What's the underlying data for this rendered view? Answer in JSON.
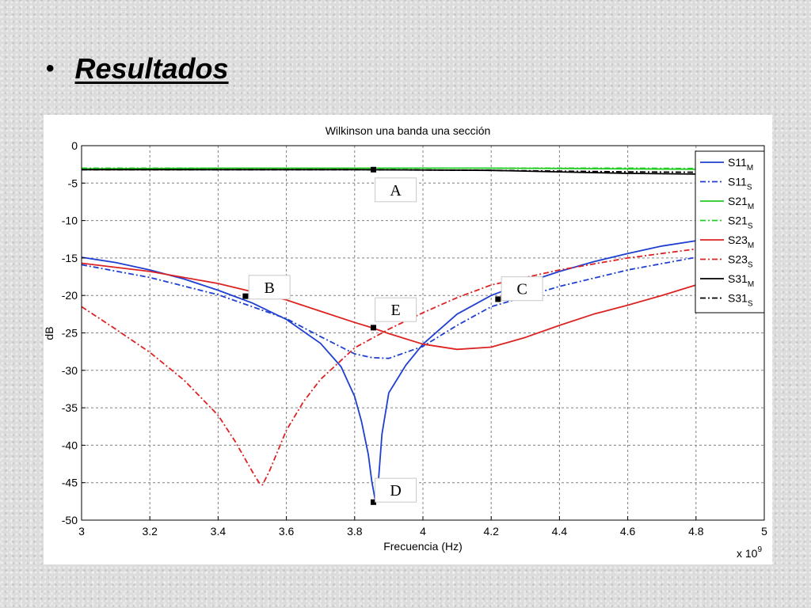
{
  "slide": {
    "bullet": "•",
    "heading": "Resultados"
  },
  "colors": {
    "blue": "#1f3fd0",
    "green": "#22cc22",
    "red": "#dd2222",
    "black": "#000000",
    "grid": "#808080"
  },
  "chart_data": {
    "type": "line",
    "title": "Wilkinson una banda una sección",
    "xlabel": "Frecuencia (Hz)",
    "ylabel": "dB",
    "x_multiplier_label": "x 10",
    "x_multiplier_exp": "9",
    "xlim": [
      3,
      5
    ],
    "ylim": [
      -50,
      0
    ],
    "grid": true,
    "legend_position": "right",
    "x_ticks": [
      "3",
      "3.2",
      "3.4",
      "3.6",
      "3.8",
      "4",
      "4.2",
      "4.4",
      "4.6",
      "4.8",
      "5"
    ],
    "y_ticks": [
      "0",
      "-5",
      "-10",
      "-15",
      "-20",
      "-25",
      "-30",
      "-35",
      "-40",
      "-45",
      "-50"
    ],
    "series": [
      {
        "name": "S11",
        "sub": "M",
        "color": "blue",
        "style": "solid",
        "x": [
          3.0,
          3.1,
          3.2,
          3.3,
          3.4,
          3.5,
          3.6,
          3.7,
          3.76,
          3.8,
          3.82,
          3.84,
          3.85,
          3.86,
          3.87,
          3.88,
          3.9,
          3.95,
          4.0,
          4.1,
          4.2,
          4.3,
          4.4,
          4.5,
          4.6,
          4.7,
          4.8,
          4.9,
          5.0
        ],
        "y": [
          -14.9,
          -15.6,
          -16.6,
          -17.8,
          -19.3,
          -21.0,
          -23.2,
          -26.4,
          -29.5,
          -33.5,
          -36.8,
          -41.2,
          -44.8,
          -47.3,
          -44.5,
          -38.5,
          -33.0,
          -29.3,
          -26.5,
          -22.5,
          -20.0,
          -18.3,
          -16.8,
          -15.5,
          -14.4,
          -13.4,
          -12.7,
          -12.3,
          -12.2
        ]
      },
      {
        "name": "S11",
        "sub": "S",
        "color": "blue",
        "style": "dashdot",
        "x": [
          3.0,
          3.2,
          3.4,
          3.6,
          3.7,
          3.8,
          3.85,
          3.9,
          4.0,
          4.1,
          4.2,
          4.4,
          4.6,
          4.8,
          5.0
        ],
        "y": [
          -15.9,
          -17.6,
          -19.9,
          -23.1,
          -25.5,
          -27.8,
          -28.3,
          -28.4,
          -26.8,
          -24.0,
          -21.5,
          -18.8,
          -16.6,
          -14.9,
          -13.9
        ]
      },
      {
        "name": "S21",
        "sub": "M",
        "color": "green",
        "style": "solid",
        "x": [
          3.0,
          3.4,
          3.8,
          4.2,
          4.6,
          5.0
        ],
        "y": [
          -3.1,
          -3.0,
          -3.0,
          -3.0,
          -3.1,
          -3.2
        ]
      },
      {
        "name": "S21",
        "sub": "S",
        "color": "green",
        "style": "dashdot",
        "x": [
          3.0,
          3.4,
          3.8,
          4.2,
          4.6,
          5.0
        ],
        "y": [
          -3.0,
          -3.0,
          -3.0,
          -3.0,
          -3.0,
          -3.1
        ]
      },
      {
        "name": "S23",
        "sub": "M",
        "color": "red",
        "style": "solid",
        "x": [
          3.0,
          3.2,
          3.4,
          3.6,
          3.7,
          3.8,
          3.85,
          3.9,
          4.0,
          4.1,
          4.2,
          4.3,
          4.4,
          4.5,
          4.6,
          4.7,
          4.8,
          4.9,
          5.0
        ],
        "y": [
          -15.7,
          -16.8,
          -18.4,
          -20.6,
          -22.1,
          -23.6,
          -24.3,
          -25.1,
          -26.5,
          -27.2,
          -26.9,
          -25.6,
          -24.0,
          -22.5,
          -21.3,
          -20.0,
          -18.6,
          -17.5,
          -17.0
        ]
      },
      {
        "name": "S23",
        "sub": "S",
        "color": "red",
        "style": "dashdot",
        "x": [
          3.0,
          3.1,
          3.2,
          3.3,
          3.4,
          3.45,
          3.5,
          3.52,
          3.53,
          3.55,
          3.6,
          3.65,
          3.7,
          3.8,
          3.9,
          4.0,
          4.1,
          4.2,
          4.4,
          4.6,
          4.8,
          5.0
        ],
        "y": [
          -21.5,
          -24.5,
          -27.6,
          -31.3,
          -36.0,
          -39.5,
          -43.5,
          -45.0,
          -45.3,
          -43.5,
          -38.0,
          -34.2,
          -31.2,
          -27.0,
          -24.5,
          -22.3,
          -20.3,
          -18.6,
          -16.6,
          -15.0,
          -13.8,
          -13.0
        ]
      },
      {
        "name": "S31",
        "sub": "M",
        "color": "black",
        "style": "solid",
        "x": [
          3.0,
          3.4,
          3.8,
          4.2,
          4.4,
          4.6,
          4.8,
          5.0
        ],
        "y": [
          -3.2,
          -3.2,
          -3.2,
          -3.3,
          -3.5,
          -3.7,
          -3.8,
          -3.9
        ]
      },
      {
        "name": "S31",
        "sub": "S",
        "color": "black",
        "style": "dashdot",
        "x": [
          3.0,
          3.4,
          3.8,
          4.2,
          4.6,
          5.0
        ],
        "y": [
          -3.2,
          -3.2,
          -3.2,
          -3.3,
          -3.5,
          -3.6
        ]
      }
    ],
    "annotations": [
      {
        "label": "A",
        "x": 3.855,
        "y": -3.2,
        "box_x": 3.86,
        "box_y": -5.9
      },
      {
        "label": "B",
        "x": 3.48,
        "y": -20.1,
        "box_x": 3.49,
        "box_y": -18.9
      },
      {
        "label": "C",
        "x": 4.22,
        "y": -20.5,
        "box_x": 4.23,
        "box_y": -19.1
      },
      {
        "label": "E",
        "x": 3.855,
        "y": -24.3,
        "box_x": 3.86,
        "box_y": -21.9
      },
      {
        "label": "D",
        "x": 3.855,
        "y": -47.6,
        "box_x": 3.86,
        "box_y": -46.0
      }
    ]
  }
}
